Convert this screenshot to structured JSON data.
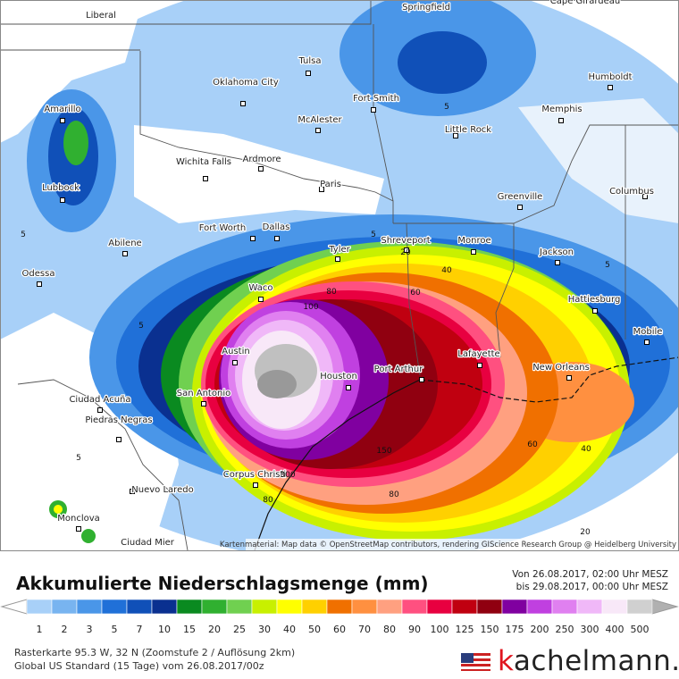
{
  "map": {
    "attribution": "Kartenmaterial: Map data © OpenStreetMap contributors, rendering GIScience Research Group @ Heidelberg University",
    "cities": [
      "Liberal",
      "Springfield",
      "Cape Girardeau",
      "Tulsa",
      "Oklahoma City",
      "Amarillo",
      "Fort Smith",
      "Humboldt",
      "Memphis",
      "McAlester",
      "Little Rock",
      "Lubbock",
      "Wichita Falls",
      "Ardmore",
      "Paris",
      "Greenville",
      "Columbus",
      "Fort Worth",
      "Dallas",
      "Shreveport",
      "Monroe",
      "Abilene",
      "Tyler",
      "Jackson",
      "Odessa",
      "Waco",
      "Hattiesburg",
      "Mobile",
      "Austin",
      "Lafayette",
      "Port Arthur",
      "Houston",
      "New Orleans",
      "San Antonio",
      "Ciudad Acuña",
      "Piedras Negras",
      "Corpus Christi",
      "Nuevo Laredo",
      "Monclova",
      "Ciudad Mier"
    ],
    "contour_labels": [
      5,
      5,
      5,
      5,
      5,
      5,
      20,
      20,
      40,
      40,
      60,
      60,
      80,
      80,
      80,
      100,
      150,
      300
    ]
  },
  "legend": {
    "title": "Akkumulierte Niederschlagsmenge (mm)",
    "period_from": "Von 26.08.2017, 02:00 Uhr MESZ",
    "period_to": "bis 29.08.2017, 00:00 Uhr MESZ",
    "items": [
      {
        "label": 1,
        "color": "#a8d0f8"
      },
      {
        "label": 2,
        "color": "#78b4f0"
      },
      {
        "label": 3,
        "color": "#4a96e8"
      },
      {
        "label": 5,
        "color": "#2070d8"
      },
      {
        "label": 7,
        "color": "#1050b8"
      },
      {
        "label": 10,
        "color": "#0a3090"
      },
      {
        "label": 15,
        "color": "#0a8a20"
      },
      {
        "label": 20,
        "color": "#30b030"
      },
      {
        "label": 25,
        "color": "#70d050"
      },
      {
        "label": 30,
        "color": "#c8f000"
      },
      {
        "label": 40,
        "color": "#ffff00"
      },
      {
        "label": 50,
        "color": "#ffd000"
      },
      {
        "label": 60,
        "color": "#f07000"
      },
      {
        "label": 70,
        "color": "#ff9040"
      },
      {
        "label": 80,
        "color": "#ffa080"
      },
      {
        "label": 90,
        "color": "#ff5080"
      },
      {
        "label": 100,
        "color": "#e80040"
      },
      {
        "label": 125,
        "color": "#c00010"
      },
      {
        "label": 150,
        "color": "#900010"
      },
      {
        "label": 175,
        "color": "#8000a0"
      },
      {
        "label": 200,
        "color": "#c040e0"
      },
      {
        "label": 250,
        "color": "#e080f0"
      },
      {
        "label": 300,
        "color": "#f0b8f8"
      },
      {
        "label": 400,
        "color": "#f8e8f8"
      },
      {
        "label": 500,
        "color": "#d0d0d0"
      }
    ]
  },
  "footer": {
    "line1": "Rasterkarte 95.3 W, 32 N (Zoomstufe 2 / Auflösung 2km)",
    "line2": "Global US Standard (15 Tage) vom 26.08.2017/00z",
    "brand": "kachelmann."
  }
}
